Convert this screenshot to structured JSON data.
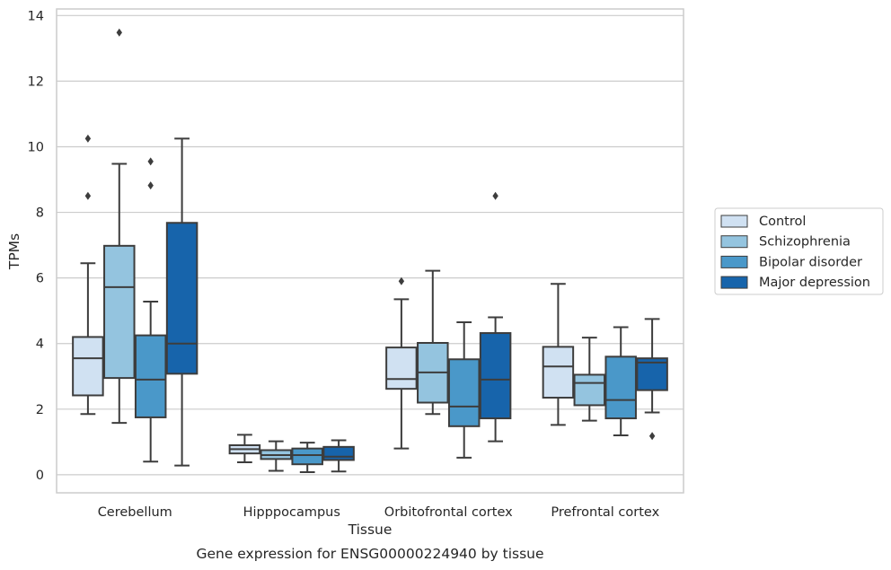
{
  "caption": "Gene expression for ENSG00000224940 by tissue",
  "chart_data": {
    "type": "box",
    "xlabel": "Tissue",
    "ylabel": "TPMs",
    "ylim": [
      -0.55,
      14.2
    ],
    "yticks": [
      0,
      2,
      4,
      6,
      8,
      10,
      12,
      14
    ],
    "grid": true,
    "legend_position": "right",
    "categories": [
      "Cerebellum",
      "Hipppocampus",
      "Orbitofrontal cortex",
      "Prefrontal cortex"
    ],
    "series": [
      {
        "name": "Control",
        "color": "#d0e1f2",
        "boxes": [
          {
            "whislo": 1.85,
            "q1": 2.42,
            "med": 3.55,
            "q3": 4.2,
            "whishi": 6.45,
            "fliers": [
              8.5,
              10.25
            ]
          },
          {
            "whislo": 0.38,
            "q1": 0.65,
            "med": 0.78,
            "q3": 0.9,
            "whishi": 1.22,
            "fliers": []
          },
          {
            "whislo": 0.8,
            "q1": 2.62,
            "med": 2.92,
            "q3": 3.88,
            "whishi": 5.35,
            "fliers": [
              5.9
            ]
          },
          {
            "whislo": 1.52,
            "q1": 2.35,
            "med": 3.3,
            "q3": 3.9,
            "whishi": 5.82,
            "fliers": []
          }
        ]
      },
      {
        "name": "Schizophrenia",
        "color": "#94c4df",
        "boxes": [
          {
            "whislo": 1.58,
            "q1": 2.95,
            "med": 5.72,
            "q3": 6.98,
            "whishi": 9.48,
            "fliers": [
              13.48
            ]
          },
          {
            "whislo": 0.12,
            "q1": 0.48,
            "med": 0.6,
            "q3": 0.75,
            "whishi": 1.02,
            "fliers": []
          },
          {
            "whislo": 1.85,
            "q1": 2.2,
            "med": 3.12,
            "q3": 4.02,
            "whishi": 6.22,
            "fliers": []
          },
          {
            "whislo": 1.65,
            "q1": 2.12,
            "med": 2.8,
            "q3": 3.05,
            "whishi": 4.18,
            "fliers": []
          }
        ]
      },
      {
        "name": "Bipolar disorder",
        "color": "#4a98c9",
        "boxes": [
          {
            "whislo": 0.4,
            "q1": 1.75,
            "med": 2.9,
            "q3": 4.25,
            "whishi": 5.28,
            "fliers": [
              8.82,
              9.55
            ]
          },
          {
            "whislo": 0.08,
            "q1": 0.32,
            "med": 0.6,
            "q3": 0.8,
            "whishi": 0.98,
            "fliers": []
          },
          {
            "whislo": 0.52,
            "q1": 1.48,
            "med": 2.08,
            "q3": 3.52,
            "whishi": 4.65,
            "fliers": []
          },
          {
            "whislo": 1.2,
            "q1": 1.72,
            "med": 2.28,
            "q3": 3.6,
            "whishi": 4.5,
            "fliers": []
          }
        ]
      },
      {
        "name": "Major depression",
        "color": "#1764ab",
        "boxes": [
          {
            "whislo": 0.28,
            "q1": 3.08,
            "med": 4.0,
            "q3": 7.68,
            "whishi": 10.25,
            "fliers": []
          },
          {
            "whislo": 0.1,
            "q1": 0.45,
            "med": 0.55,
            "q3": 0.85,
            "whishi": 1.05,
            "fliers": []
          },
          {
            "whislo": 1.02,
            "q1": 1.72,
            "med": 2.9,
            "q3": 4.32,
            "whishi": 4.8,
            "fliers": [
              8.5
            ]
          },
          {
            "whislo": 1.9,
            "q1": 2.58,
            "med": 3.42,
            "q3": 3.55,
            "whishi": 4.75,
            "fliers": [
              1.18
            ]
          }
        ]
      }
    ]
  }
}
